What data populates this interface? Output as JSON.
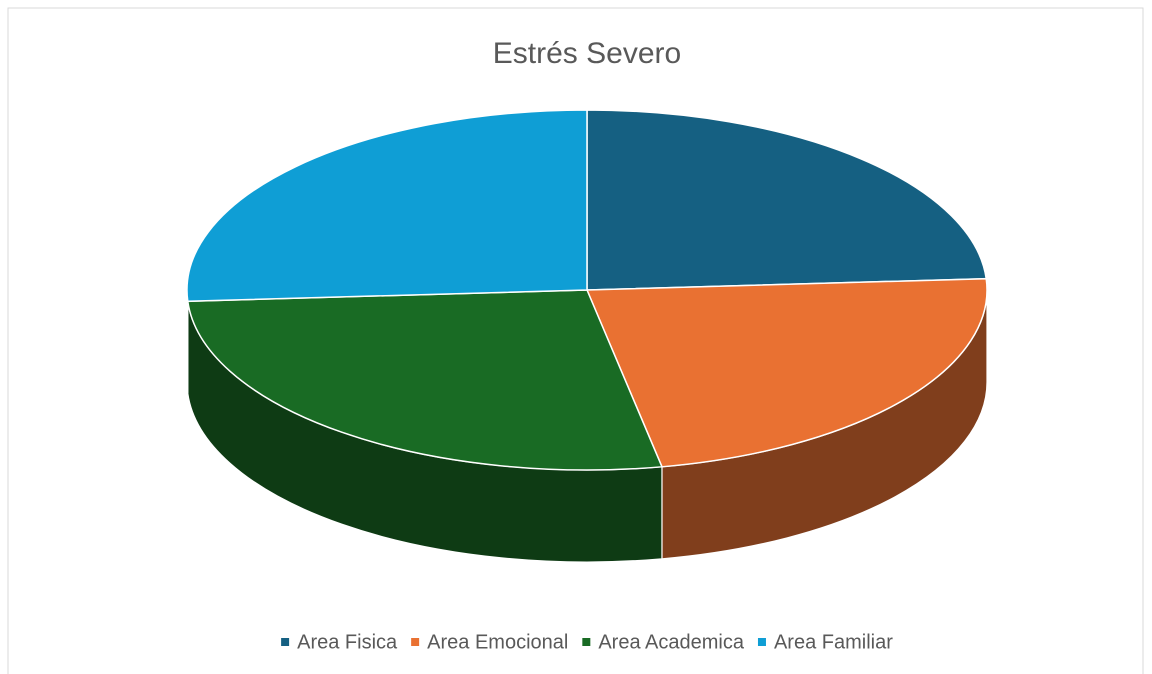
{
  "chart_data": {
    "type": "pie",
    "title": "Estrés Severo",
    "categories": [
      "Area Fisica",
      "Area Emocional",
      "Area Academica",
      "Area Familiar"
    ],
    "values": [
      24,
      23,
      27,
      26
    ],
    "colors": [
      "#156082",
      "#e97132",
      "#196b24",
      "#0f9ed5"
    ],
    "legend": "bottom"
  }
}
